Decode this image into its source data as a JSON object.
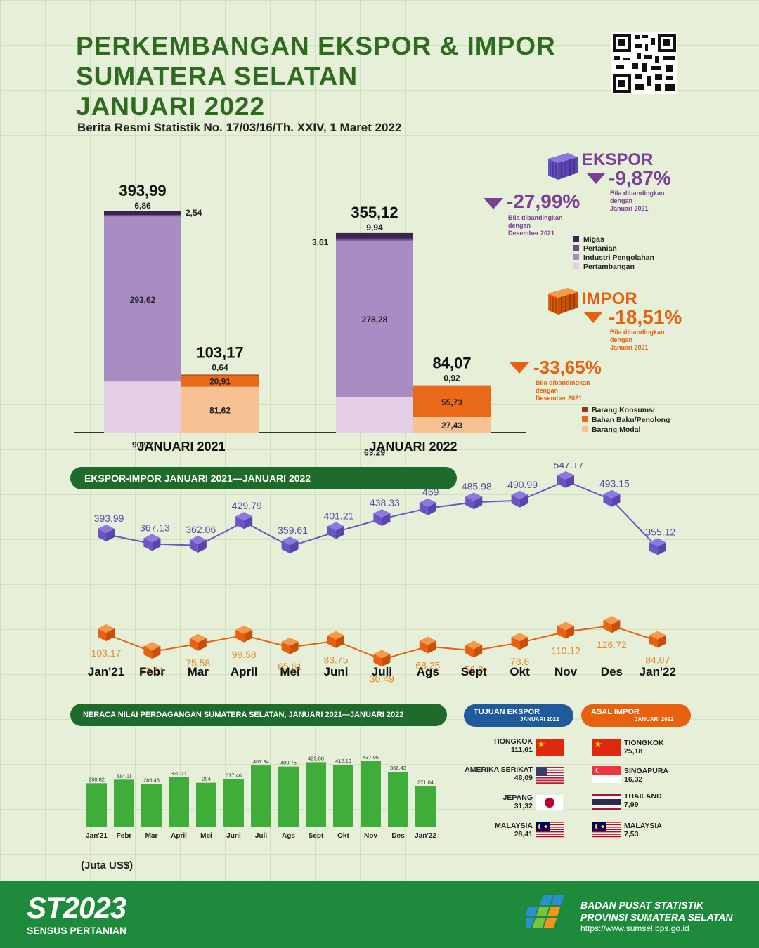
{
  "header": {
    "title_lines": [
      "PERKEMBANGAN EKSPOR & IMPOR",
      "SUMATERA SELATAN",
      "JANUARI 2022"
    ],
    "subtitle": "Berita Resmi Statistik No. 17/03/16/Th. XXIV, 1 Maret 2022"
  },
  "summary": {
    "ekspor": {
      "label": "EKSPOR",
      "yoy": "-9,87%",
      "yoy_note": [
        "Bila dibandingkan",
        "dengan",
        "Januari 2021"
      ],
      "mom": "-27,99%",
      "mom_note": [
        "Bila dibandingkan",
        "dengan",
        "Desember 2021"
      ]
    },
    "impor": {
      "label": "IMPOR",
      "yoy": "-18,51%",
      "yoy_note": [
        "Bila dibandingkan",
        "dengan",
        "Januari 2021"
      ],
      "mom": "-33,65%",
      "mom_note": [
        "Bila dibandingkan",
        "dengan",
        "Desember 2021"
      ]
    },
    "ekspor_legend": [
      "Migas",
      "Pertanian",
      "Industri Pengolahan",
      "Pertambangan"
    ],
    "impor_legend": [
      "Barang Konsumsi",
      "Bahan Baku/Penolong",
      "Barang Modal"
    ]
  },
  "chart_data": [
    {
      "type": "bar",
      "title": "",
      "categories": [
        "JANUARI 2021",
        "JANUARI 2022"
      ],
      "ekspor": {
        "totals": [
          "393,99",
          "355,12"
        ],
        "total_values": [
          393.99,
          355.12
        ],
        "series": [
          {
            "name": "Pertambangan",
            "values": [
              90.97,
              63.29
            ],
            "labels": [
              "90,97",
              "63,29"
            ],
            "color": "#e5cfe6"
          },
          {
            "name": "Industri Pengolahan",
            "values": [
              293.62,
              278.28
            ],
            "labels": [
              "293,62",
              "278,28"
            ],
            "color": "#a98cc4"
          },
          {
            "name": "Pertanian",
            "values": [
              2.54,
              3.61
            ],
            "labels": [
              "2,54",
              "3,61"
            ],
            "color": "#6a4e8c"
          },
          {
            "name": "Migas",
            "values": [
              6.86,
              9.94
            ],
            "labels": [
              "6,86",
              "9,94"
            ],
            "color": "#3d2350"
          }
        ]
      },
      "impor": {
        "totals": [
          "103,17",
          "84,07"
        ],
        "total_values": [
          103.17,
          84.07
        ],
        "series": [
          {
            "name": "Barang Modal",
            "values": [
              81.62,
              27.43
            ],
            "labels": [
              "81,62",
              "27,43"
            ],
            "color": "#f8c193"
          },
          {
            "name": "Bahan Baku/Penolong",
            "values": [
              20.91,
              55.73
            ],
            "labels": [
              "20,91",
              "55,73"
            ],
            "color": "#ea6a1a"
          },
          {
            "name": "Barang Konsumsi",
            "values": [
              0.64,
              0.92
            ],
            "labels": [
              "0,64",
              "0,92"
            ],
            "color": "#8a3d10"
          }
        ]
      }
    },
    {
      "type": "line",
      "title": "EKSPOR-IMPOR JANUARI 2021—JANUARI 2022",
      "categories": [
        "Jan'21",
        "Febr",
        "Mar",
        "April",
        "Mei",
        "Juni",
        "Juli",
        "Ags",
        "Sept",
        "Okt",
        "Nov",
        "Des",
        "Jan'22"
      ],
      "series": [
        {
          "name": "EKSPOR",
          "values": [
            393.99,
            367.13,
            362.06,
            429.79,
            359.61,
            401.21,
            438.33,
            469,
            485.98,
            490.99,
            547.17,
            493.15,
            355.12
          ],
          "labels": [
            "393.99",
            "367.13",
            "362.06",
            "429.79",
            "359.61",
            "401.21",
            "438.33",
            "469",
            "485.98",
            "490.99",
            "547.17",
            "493.15",
            "355.12"
          ],
          "color": "#7a5fbe"
        },
        {
          "name": "IMPOR",
          "values": [
            103.17,
            53.01,
            75.58,
            99.58,
            65.61,
            83.75,
            30.49,
            68.25,
            56.3,
            78.8,
            110.12,
            126.72,
            84.07
          ],
          "labels": [
            "103.17",
            "53.01",
            "75.58",
            "99.58",
            "65.61",
            "83.75",
            "30.49",
            "68.25",
            "56.3",
            "78.8",
            "110.12",
            "126.72",
            "84.07"
          ],
          "color": "#e8761f"
        }
      ]
    },
    {
      "type": "bar",
      "title": "NERACA NILAI PERDAGANGAN SUMATERA SELATAN, JANUARI 2021—JANUARI 2022",
      "categories": [
        "Jan'21",
        "Febr",
        "Mar",
        "April",
        "Mei",
        "Juni",
        "Juli",
        "Ags",
        "Sept",
        "Okt",
        "Nov",
        "Des",
        "Jan'22"
      ],
      "values": [
        290.82,
        314.11,
        286.48,
        330.21,
        294,
        317.46,
        407.84,
        400.75,
        429.68,
        412.19,
        437.05,
        366.43,
        271.04
      ],
      "labels": [
        "290.82",
        "314.11",
        "286.48",
        "330.21",
        "294",
        "317.46",
        "407.84",
        "400.75",
        "429.68",
        "412.19",
        "437.05",
        "366.43",
        "271.04"
      ],
      "unit": "(Juta US$)",
      "color": "#3fad3a"
    }
  ],
  "tujuan_ekspor": {
    "title": "TUJUAN EKSPOR",
    "period": "JANUARI 2022",
    "items": [
      {
        "country": "TIONGKOK",
        "value": "111,61",
        "flag": "china-flag-icon"
      },
      {
        "country": "AMERIKA SERIKAT",
        "value": "48,09",
        "flag": "usa-flag-icon"
      },
      {
        "country": "JEPANG",
        "value": "31,32",
        "flag": "japan-flag-icon"
      },
      {
        "country": "MALAYSIA",
        "value": "28,41",
        "flag": "malaysia-flag-icon"
      }
    ]
  },
  "asal_impor": {
    "title": "ASAL IMPOR",
    "period": "JANUARI 2022",
    "items": [
      {
        "country": "TIONGKOK",
        "value": "25,18",
        "flag": "china-flag-icon"
      },
      {
        "country": "SINGAPURA",
        "value": "16,32",
        "flag": "singapore-flag-icon"
      },
      {
        "country": "THAILAND",
        "value": "7,99",
        "flag": "thailand-flag-icon"
      },
      {
        "country": "MALAYSIA",
        "value": "7,53",
        "flag": "malaysia-flag-icon"
      }
    ]
  },
  "footer": {
    "st_logo": "ST2023",
    "st_caption": "SENSUS PERTANIAN",
    "org_line1": "BADAN PUSAT STATISTIK",
    "org_line2": "PROVINSI SUMATERA SELATAN",
    "url": "https://www.sumsel.bps.go.id"
  },
  "colors": {
    "green": "#2f6b1e",
    "purple": "#7b3f98",
    "orange": "#e8610e",
    "blue": "#1f5a9a",
    "footer": "#1e8a3c"
  }
}
